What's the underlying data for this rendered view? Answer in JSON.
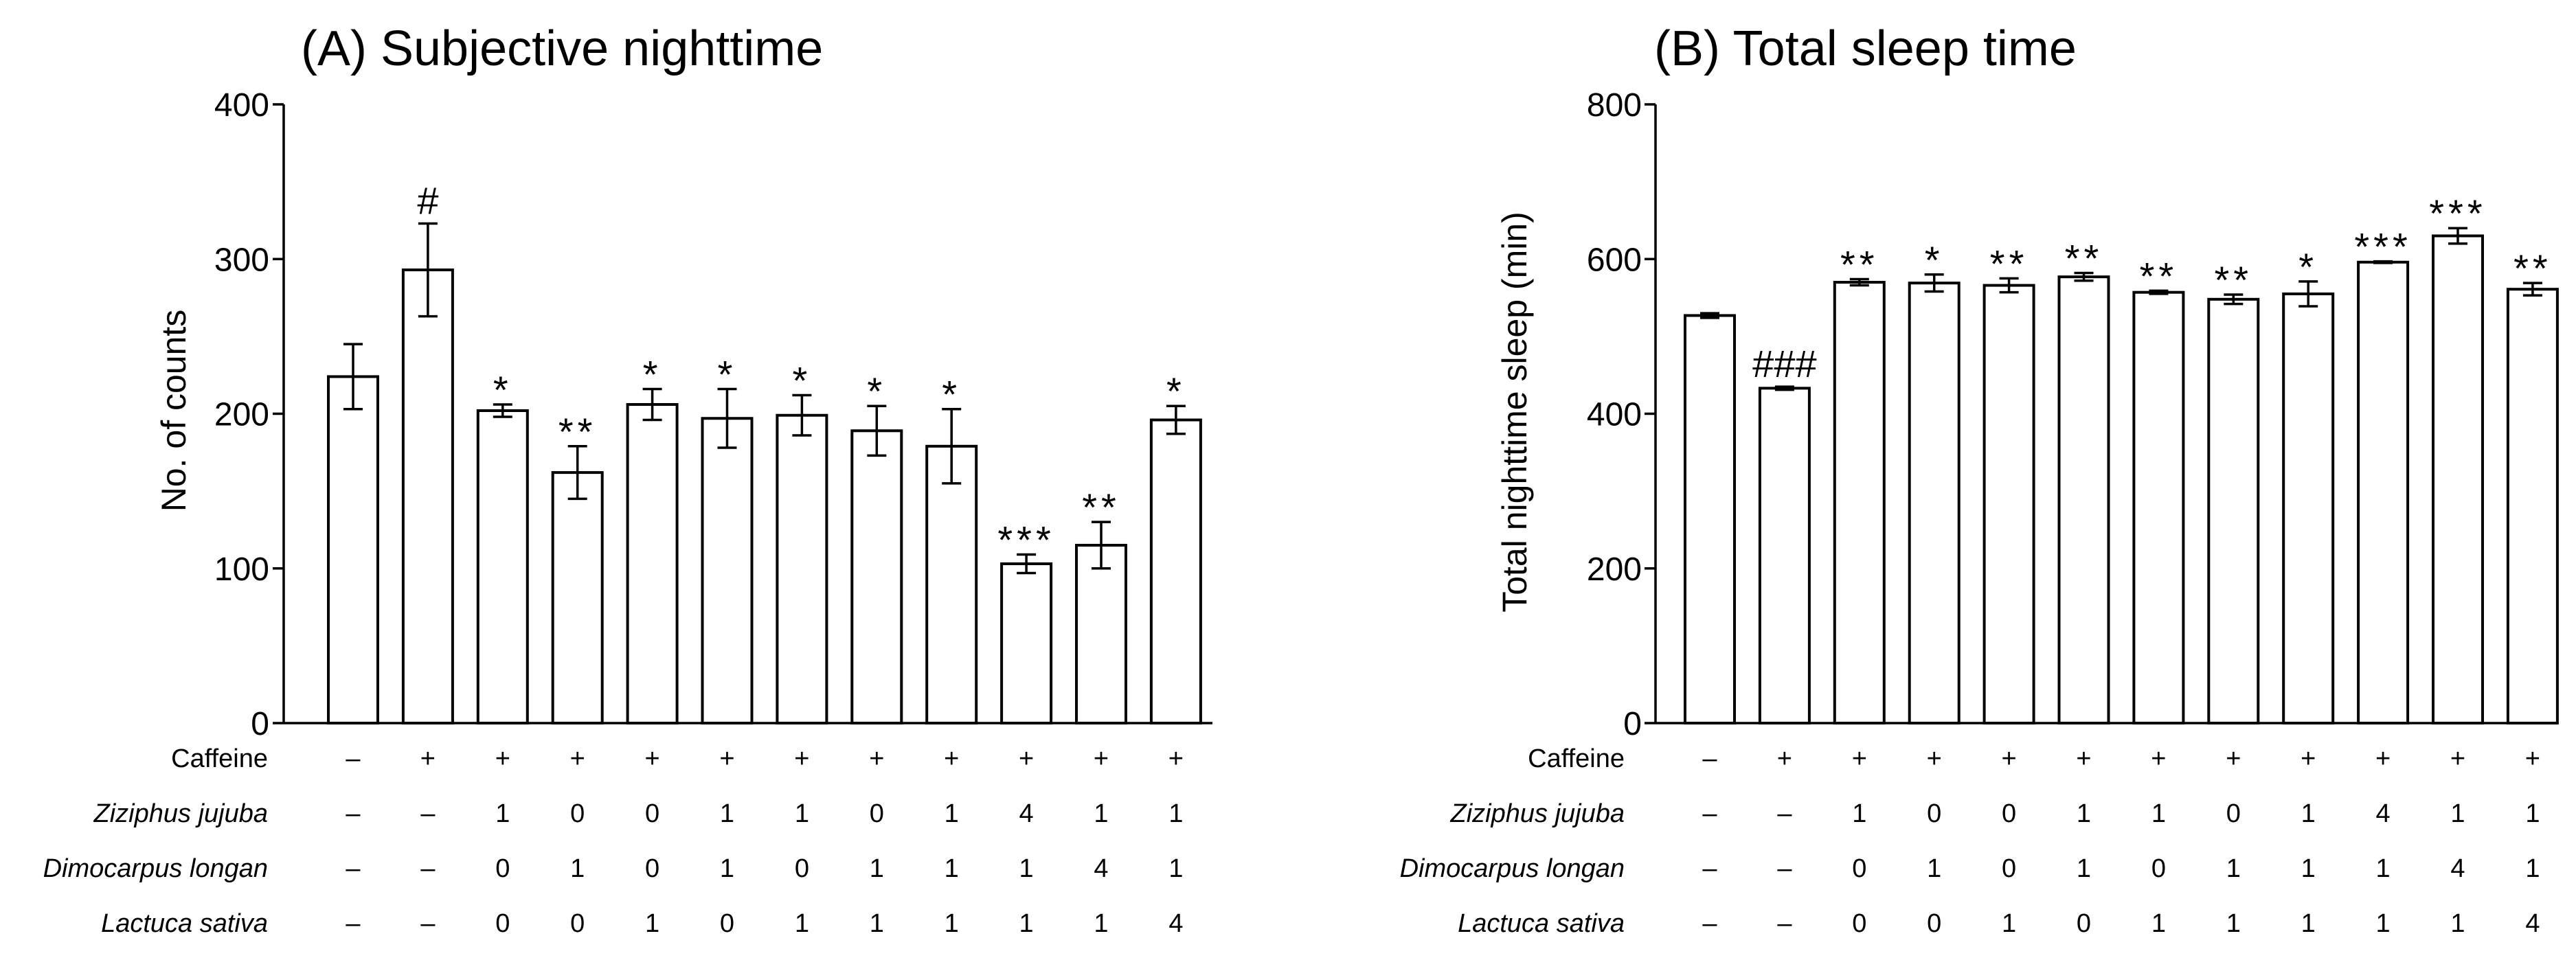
{
  "chart_data": [
    {
      "type": "bar",
      "title": "(A) Subjective nighttime",
      "ylabel": "No. of counts",
      "xlabel": "",
      "ylim": [
        0,
        400
      ],
      "yticks": [
        "0",
        "100",
        "200",
        "300",
        "400"
      ],
      "series": [
        {
          "name": "No. of counts",
          "values": [
            224,
            293,
            202,
            162,
            206,
            197,
            199,
            189,
            179,
            103,
            115,
            196
          ],
          "errors": [
            21,
            30,
            4,
            17,
            10,
            19,
            13,
            16,
            24,
            6,
            15,
            9
          ]
        }
      ],
      "annotations": [
        "",
        "#",
        "*",
        "**",
        "*",
        "*",
        "*",
        "*",
        "*",
        "***",
        "**",
        "*"
      ]
    },
    {
      "type": "bar",
      "title": "(B) Total sleep time",
      "ylabel": "Total nighttime sleep (min)",
      "xlabel": "",
      "ylim": [
        0,
        800
      ],
      "yticks": [
        "0",
        "200",
        "400",
        "600",
        "800"
      ],
      "series": [
        {
          "name": "Total nighttime sleep (min)",
          "values": [
            527,
            433,
            570,
            569,
            566,
            577,
            557,
            548,
            555,
            596,
            630,
            561
          ],
          "errors": [
            3,
            2,
            4,
            11,
            9,
            5,
            2,
            6,
            16,
            1,
            10,
            8
          ]
        }
      ],
      "annotations": [
        "",
        "###",
        "**",
        "*",
        "**",
        "**",
        "**",
        "**",
        "*",
        "***",
        "***",
        "**"
      ]
    }
  ],
  "treatment_table": {
    "rows": [
      {
        "label": "Caffeine",
        "italic": false,
        "values": [
          "–",
          "+",
          "+",
          "+",
          "+",
          "+",
          "+",
          "+",
          "+",
          "+",
          "+",
          "+"
        ]
      },
      {
        "label": "Ziziphus jujuba",
        "italic": true,
        "values": [
          "–",
          "–",
          "1",
          "0",
          "0",
          "1",
          "1",
          "0",
          "1",
          "4",
          "1",
          "1"
        ]
      },
      {
        "label": "Dimocarpus longan",
        "italic": true,
        "values": [
          "–",
          "–",
          "0",
          "1",
          "0",
          "1",
          "0",
          "1",
          "1",
          "1",
          "4",
          "1"
        ]
      },
      {
        "label": "Lactuca sativa",
        "italic": true,
        "values": [
          "–",
          "–",
          "0",
          "0",
          "1",
          "0",
          "1",
          "1",
          "1",
          "1",
          "1",
          "4"
        ]
      }
    ]
  }
}
